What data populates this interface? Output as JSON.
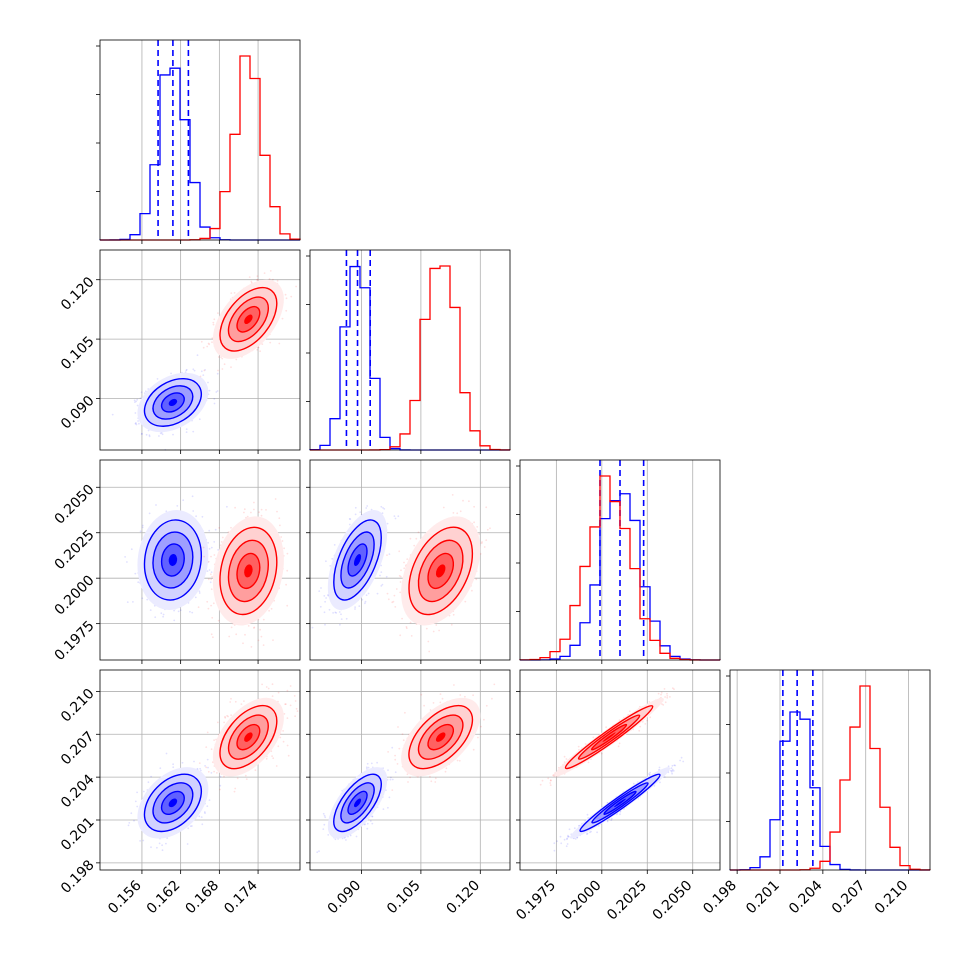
{
  "chart_data": {
    "type": "corner",
    "title": "",
    "parameters": [
      "",
      "",
      "",
      ""
    ],
    "ranges": [
      [
        0.1495,
        0.1805
      ],
      [
        0.077,
        0.1275
      ],
      [
        0.1955,
        0.2065
      ],
      [
        0.1975,
        0.2115
      ]
    ],
    "ticks": [
      [
        "0.156",
        "0.162",
        "0.168",
        "0.174"
      ],
      [
        "0.090",
        "0.105",
        "0.120"
      ],
      [
        "0.1975",
        "0.2000",
        "0.2025",
        "0.2050"
      ],
      [
        "0.198",
        "0.201",
        "0.204",
        "0.207",
        "0.210"
      ]
    ],
    "grid": true,
    "series": [
      {
        "color": "#0000ff",
        "mean": [
          0.1608,
          0.089,
          0.201,
          0.2022
        ],
        "std": [
          0.0022,
          0.003,
          0.0011,
          0.001
        ],
        "quantile_lines": true,
        "quantiles": [
          [
            0.1585,
            0.1608,
            0.1632
          ],
          [
            0.0862,
            0.089,
            0.0922
          ],
          [
            0.1999,
            0.201,
            0.2023
          ],
          [
            0.2012,
            0.2022,
            0.2033
          ]
        ],
        "correlations": [
          [
            0,
            1,
            0.35
          ],
          [
            0,
            2,
            0.1
          ],
          [
            1,
            2,
            0.55
          ],
          [
            0,
            3,
            0.4
          ],
          [
            1,
            3,
            0.65
          ],
          [
            2,
            3,
            0.97
          ]
        ]
      },
      {
        "color": "#ff0000",
        "mean": [
          0.1725,
          0.11,
          0.2004,
          0.2068
        ],
        "std": [
          0.0022,
          0.004,
          0.0012,
          0.0011
        ],
        "quantile_lines": false,
        "correlations": [
          [
            0,
            1,
            0.5
          ],
          [
            0,
            2,
            0.2
          ],
          [
            1,
            2,
            0.4
          ],
          [
            0,
            3,
            0.5
          ],
          [
            1,
            3,
            0.55
          ],
          [
            2,
            3,
            0.97
          ]
        ]
      }
    ]
  }
}
